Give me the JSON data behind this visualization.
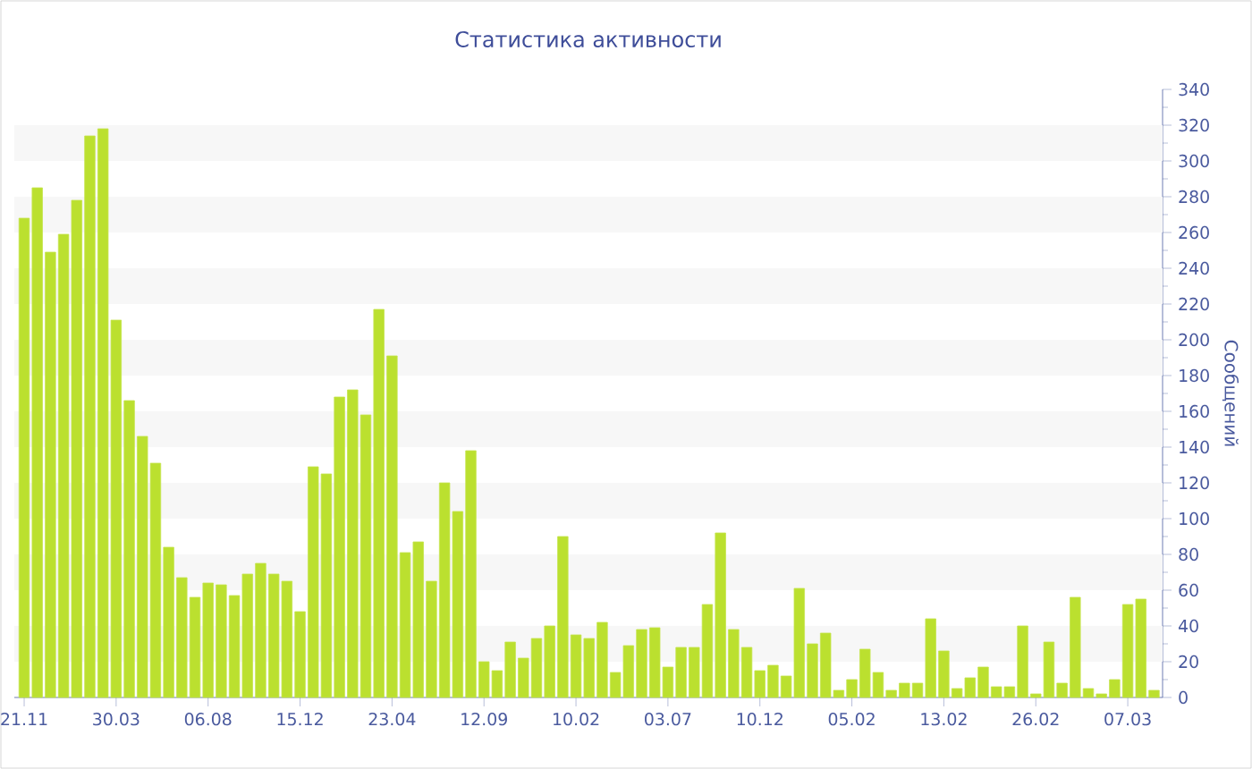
{
  "chart_data": {
    "type": "bar",
    "title": "Статистика активности",
    "ylabel": "Сообщений",
    "categories": [
      "21.11",
      null,
      null,
      null,
      null,
      null,
      null,
      "30.03",
      null,
      null,
      null,
      null,
      null,
      null,
      "06.08",
      null,
      null,
      null,
      null,
      null,
      null,
      "15.12",
      null,
      null,
      null,
      null,
      null,
      null,
      "23.04",
      null,
      null,
      null,
      null,
      null,
      null,
      "12.09",
      null,
      null,
      null,
      null,
      null,
      null,
      "10.02",
      null,
      null,
      null,
      null,
      null,
      null,
      "03.07",
      null,
      null,
      null,
      null,
      null,
      null,
      "10.12",
      null,
      null,
      null,
      null,
      null,
      null,
      "05.02",
      null,
      null,
      null,
      null,
      null,
      null,
      "13.02",
      null,
      null,
      null,
      null,
      null,
      null,
      "26.02",
      null,
      null,
      null,
      null,
      null,
      null,
      "07.03",
      null,
      null
    ],
    "values": [
      268,
      285,
      249,
      259,
      278,
      314,
      318,
      211,
      166,
      146,
      131,
      84,
      67,
      56,
      64,
      63,
      57,
      69,
      75,
      69,
      65,
      48,
      129,
      125,
      168,
      172,
      158,
      217,
      191,
      81,
      87,
      65,
      120,
      104,
      138,
      20,
      15,
      31,
      22,
      33,
      40,
      90,
      35,
      33,
      42,
      14,
      29,
      38,
      39,
      17,
      28,
      28,
      52,
      92,
      38,
      28,
      15,
      18,
      12,
      61,
      30,
      36,
      4,
      10,
      27,
      14,
      4,
      8,
      8,
      44,
      26,
      5,
      11,
      17,
      6,
      6,
      40,
      2,
      31,
      8,
      56,
      5,
      2,
      10,
      52,
      55,
      4
    ],
    "color": "#bbe02f",
    "ylim": [
      0,
      340
    ],
    "yticks": [
      0,
      20,
      40,
      60,
      80,
      100,
      120,
      140,
      160,
      180,
      200,
      220,
      240,
      260,
      280,
      300,
      320,
      340
    ],
    "bands": [
      {
        "axis": "y",
        "from": 20,
        "to": 40,
        "color": "#f7f7f7"
      },
      {
        "axis": "y",
        "from": 60,
        "to": 80,
        "color": "#f7f7f7"
      },
      {
        "axis": "y",
        "from": 100,
        "to": 120,
        "color": "#f7f7f7"
      },
      {
        "axis": "y",
        "from": 140,
        "to": 160,
        "color": "#f7f7f7"
      },
      {
        "axis": "y",
        "from": 180,
        "to": 200,
        "color": "#f7f7f7"
      },
      {
        "axis": "y",
        "from": 220,
        "to": 240,
        "color": "#f7f7f7"
      },
      {
        "axis": "y",
        "from": 260,
        "to": 280,
        "color": "#f7f7f7"
      },
      {
        "axis": "y",
        "from": 300,
        "to": 320,
        "color": "#f7f7f7"
      }
    ]
  }
}
